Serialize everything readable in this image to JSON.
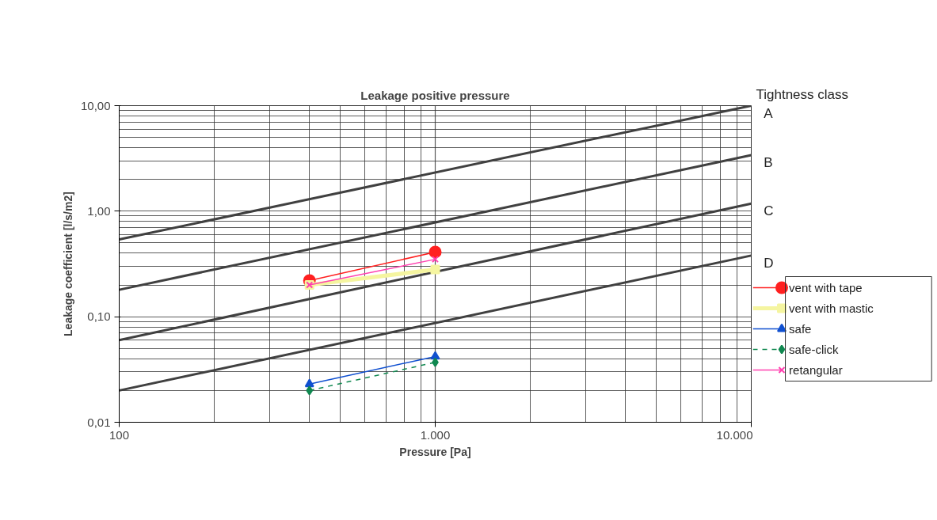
{
  "chart_data": {
    "type": "line",
    "title": "Leakage positive pressure",
    "xlabel": "Pressure [Pa]",
    "ylabel": "Leakage coefficient [l/s/m2]",
    "annotations": [
      "Tightness class"
    ],
    "log": "xy",
    "grid": true,
    "legend": "right",
    "xlim": [
      100,
      10000
    ],
    "xticks": [
      {
        "value": 100,
        "label": "100"
      },
      {
        "value": 1000,
        "label": "1.000"
      },
      {
        "value": 10000,
        "label": "10.000"
      }
    ],
    "ylim": [
      0.01,
      10
    ],
    "yticks": [
      {
        "value": 0.01,
        "label": "0,01"
      },
      {
        "value": 0.1,
        "label": "0,10"
      },
      {
        "value": 1,
        "label": "1,00"
      },
      {
        "value": 10,
        "label": "10,00"
      }
    ],
    "series": [
      {
        "name": "A",
        "color": "#404040",
        "x": [
          100,
          10000
        ],
        "values": [
          0.54,
          10
        ],
        "marker": "none"
      },
      {
        "name": "B",
        "color": "#404040",
        "x": [
          100,
          10000
        ],
        "values": [
          0.18,
          3.4
        ],
        "marker": "none"
      },
      {
        "name": "C",
        "color": "#404040",
        "x": [
          100,
          10000
        ],
        "values": [
          0.06,
          1.18
        ],
        "marker": "none"
      },
      {
        "name": "D",
        "color": "#404040",
        "x": [
          100,
          10000
        ],
        "values": [
          0.02,
          0.38
        ],
        "marker": "none"
      },
      {
        "name": "vent with tape",
        "color": "#ff2020",
        "x": [
          400,
          1000
        ],
        "values": [
          0.22,
          0.41
        ],
        "marker": "circle",
        "line_style": "solid"
      },
      {
        "name": "vent with mastic",
        "color": "#f5f5a0",
        "x": [
          400,
          1000
        ],
        "values": [
          0.2,
          0.28
        ],
        "marker": "square",
        "line_style": "solid"
      },
      {
        "name": "safe",
        "color": "#1050d0",
        "x": [
          400,
          1000
        ],
        "values": [
          0.023,
          0.042
        ],
        "marker": "triangle",
        "line_style": "solid"
      },
      {
        "name": "safe-click",
        "color": "#108850",
        "x": [
          400,
          1000
        ],
        "values": [
          0.02,
          0.037
        ],
        "marker": "diamond",
        "line_style": "dashed"
      },
      {
        "name": "retangular",
        "color": "#ff40b0",
        "x": [
          400,
          1000
        ],
        "values": [
          0.2,
          0.35
        ],
        "marker": "x",
        "line_style": "solid"
      }
    ]
  }
}
